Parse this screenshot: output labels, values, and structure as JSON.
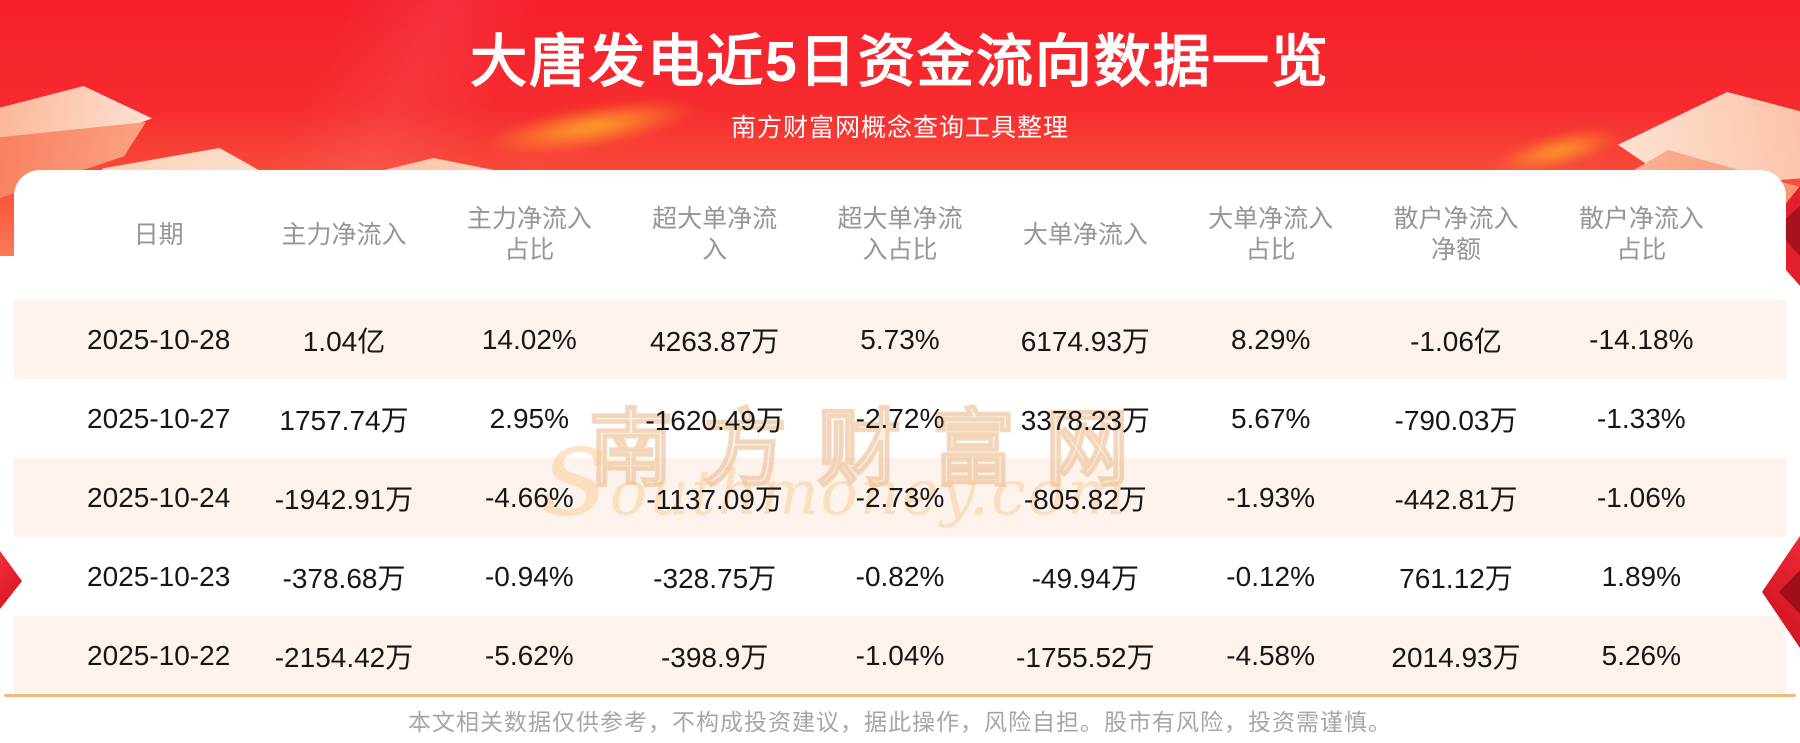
{
  "banner": {
    "title": "大唐发电近5日资金流向数据一览",
    "subtitle": "南方财富网概念查询工具整理"
  },
  "chart_data": {
    "type": "table",
    "title": "大唐发电近5日资金流向数据一览",
    "subtitle": "南方财富网概念查询工具整理",
    "columns": [
      "日期",
      "主力净流入",
      "主力净流入占比",
      "超大单净流入",
      "超大单净流入占比",
      "大单净流入",
      "大单净流入占比",
      "散户净流入净额",
      "散户净流入占比"
    ],
    "rows": [
      [
        "2025-10-28",
        "1.04亿",
        "14.02%",
        "4263.87万",
        "5.73%",
        "6174.93万",
        "8.29%",
        "-1.06亿",
        "-14.18%"
      ],
      [
        "2025-10-27",
        "1757.74万",
        "2.95%",
        "-1620.49万",
        "-2.72%",
        "3378.23万",
        "5.67%",
        "-790.03万",
        "-1.33%"
      ],
      [
        "2025-10-24",
        "-1942.91万",
        "-4.66%",
        "-1137.09万",
        "-2.73%",
        "-805.82万",
        "-1.93%",
        "-442.81万",
        "-1.06%"
      ],
      [
        "2025-10-23",
        "-378.68万",
        "-0.94%",
        "-328.75万",
        "-0.82%",
        "-49.94万",
        "-0.12%",
        "761.12万",
        "1.89%"
      ],
      [
        "2025-10-22",
        "-2154.42万",
        "-5.62%",
        "-398.9万",
        "-1.04%",
        "-1755.52万",
        "-4.58%",
        "2014.93万",
        "5.26%"
      ]
    ]
  },
  "table": {
    "column_labels_display": [
      "日期",
      "主力净流入",
      "主力净流入\n占比",
      "超大单净流\n入",
      "超大单净流\n入占比",
      "大单净流入",
      "大单净流入\n占比",
      "散户净流入\n净额",
      "散户净流入\n占比"
    ]
  },
  "watermark": {
    "line1": "南方财富网",
    "line2": "southmoney.com"
  },
  "footer": {
    "disclaimer": "本文相关数据仅供参考，不构成投资建议，据此操作，风险自担。股市有风险，投资需谨慎。"
  },
  "colors": {
    "banner_red_top": "#f51f2c",
    "banner_red_bottom": "#fb7a55",
    "row_stripe_pink": "#fdf3ec",
    "divider_orange": "#f0ba7c",
    "header_text_gray": "#969696",
    "cell_text": "#161616",
    "footer_text_gray": "#a6a6a6",
    "title_text": "#ffffff"
  }
}
